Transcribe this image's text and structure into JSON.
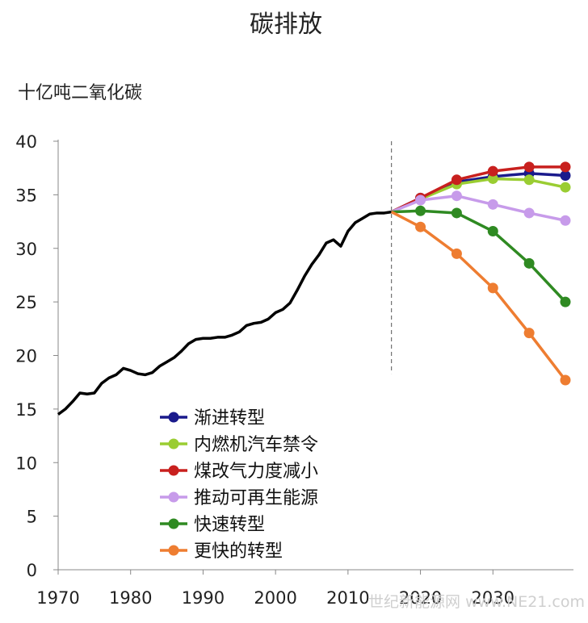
{
  "chart_data": {
    "type": "line",
    "title": "碳排放",
    "ylabel": "十亿吨二氧化碳",
    "xlabel": "",
    "xlim": [
      1970,
      2040
    ],
    "ylim": [
      0,
      40
    ],
    "xticks": [
      1970,
      1980,
      1990,
      2000,
      2010,
      2020,
      2030
    ],
    "yticks": [
      0,
      5,
      10,
      15,
      20,
      25,
      30,
      35,
      40
    ],
    "divider_year": 2016,
    "legend_position": "bottom-center",
    "history": {
      "color": "#000000",
      "x": [
        1970,
        1971,
        1972,
        1973,
        1974,
        1975,
        1976,
        1977,
        1978,
        1979,
        1980,
        1981,
        1982,
        1983,
        1984,
        1985,
        1986,
        1987,
        1988,
        1989,
        1990,
        1991,
        1992,
        1993,
        1994,
        1995,
        1996,
        1997,
        1998,
        1999,
        2000,
        2001,
        2002,
        2003,
        2004,
        2005,
        2006,
        2007,
        2008,
        2009,
        2010,
        2011,
        2012,
        2013,
        2014,
        2015,
        2016
      ],
      "values": [
        14.5,
        15.0,
        15.7,
        16.5,
        16.4,
        16.5,
        17.4,
        17.9,
        18.2,
        18.8,
        18.6,
        18.3,
        18.2,
        18.4,
        19.0,
        19.4,
        19.8,
        20.4,
        21.1,
        21.5,
        21.6,
        21.6,
        21.7,
        21.7,
        21.9,
        22.2,
        22.8,
        23.0,
        23.1,
        23.4,
        24.0,
        24.3,
        24.9,
        26.1,
        27.4,
        28.5,
        29.4,
        30.5,
        30.8,
        30.2,
        31.6,
        32.4,
        32.8,
        33.2,
        33.3,
        33.3,
        33.4
      ]
    },
    "x": [
      2016,
      2020,
      2025,
      2030,
      2035,
      2040
    ],
    "series": [
      {
        "name": "渐进转型",
        "color": "#1a1a8c",
        "values": [
          33.4,
          34.7,
          36.2,
          36.7,
          37.0,
          36.8
        ]
      },
      {
        "name": "内燃机汽车禁令",
        "color": "#9acd32",
        "values": [
          33.4,
          34.6,
          36.0,
          36.5,
          36.4,
          35.7
        ]
      },
      {
        "name": "煤改气力度减小",
        "color": "#c8201e",
        "values": [
          33.4,
          34.7,
          36.4,
          37.2,
          37.6,
          37.6
        ]
      },
      {
        "name": "推动可再生能源",
        "color": "#c79bea",
        "values": [
          33.4,
          34.5,
          34.9,
          34.1,
          33.3,
          32.6
        ]
      },
      {
        "name": "快速转型",
        "color": "#2f8a22",
        "values": [
          33.4,
          33.5,
          33.3,
          31.6,
          28.6,
          25.0
        ]
      },
      {
        "name": "更快的转型",
        "color": "#ee7d31",
        "values": [
          33.4,
          32.0,
          29.5,
          26.3,
          22.1,
          17.7
        ]
      }
    ]
  },
  "watermark": "世纪新能源网 www.NE21.com"
}
